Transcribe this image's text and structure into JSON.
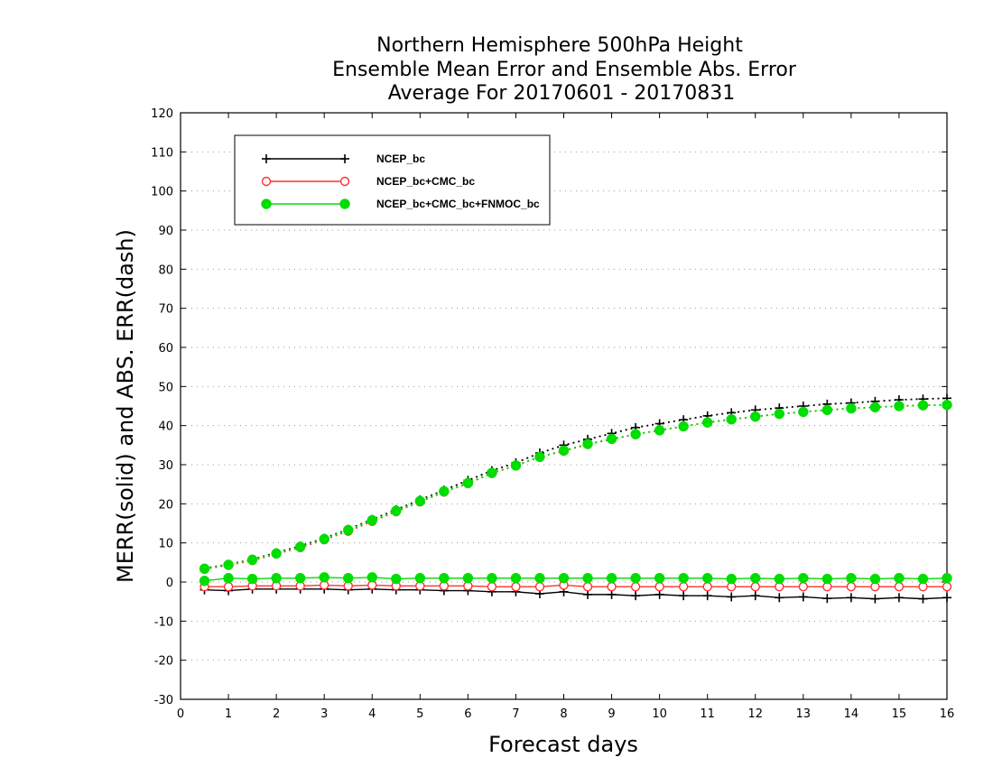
{
  "chart_data": {
    "type": "line",
    "title": [
      "Northern Hemisphere 500hPa Height",
      "Ensemble Mean Error and Ensemble Abs. Error",
      "Average For 20170601 - 20170831"
    ],
    "xlabel": "Forecast days",
    "ylabel": "MERR(solid) and ABS. ERR(dash)",
    "xlim": [
      0,
      16
    ],
    "ylim": [
      -30,
      120
    ],
    "xticks": [
      "0",
      "1",
      "2",
      "3",
      "4",
      "5",
      "6",
      "7",
      "8",
      "9",
      "10",
      "11",
      "12",
      "13",
      "14",
      "15",
      "16"
    ],
    "yticks": [
      "-30",
      "-20",
      "-10",
      "0",
      "10",
      "20",
      "30",
      "40",
      "50",
      "60",
      "70",
      "80",
      "90",
      "100",
      "110",
      "120"
    ],
    "grid": "horizontal dotted",
    "legend_position": "top-left",
    "x": [
      0.5,
      1,
      1.5,
      2,
      2.5,
      3,
      3.5,
      4,
      4.5,
      5,
      5.5,
      6,
      6.5,
      7,
      7.5,
      8,
      8.5,
      9,
      9.5,
      10,
      10.5,
      11,
      11.5,
      12,
      12.5,
      13,
      13.5,
      14,
      14.5,
      15,
      15.5,
      16
    ],
    "series": [
      {
        "name": "NCEP_bc",
        "color": "#000000",
        "marker": "plus",
        "merr": [
          -2,
          -2.2,
          -1.8,
          -1.8,
          -1.8,
          -1.8,
          -2,
          -1.8,
          -2,
          -2,
          -2.2,
          -2.2,
          -2.5,
          -2.5,
          -3,
          -2.5,
          -3.2,
          -3.2,
          -3.5,
          -3.2,
          -3.5,
          -3.5,
          -3.8,
          -3.5,
          -4,
          -3.8,
          -4.2,
          -4,
          -4.3,
          -4,
          -4.3,
          -4
        ],
        "abserr": [
          3.5,
          4.5,
          5.8,
          7.5,
          9.2,
          11.2,
          13.5,
          16,
          18.5,
          21,
          23.5,
          26,
          28.5,
          30.5,
          33,
          35,
          36.5,
          38,
          39.5,
          40.5,
          41.5,
          42.5,
          43.3,
          44,
          44.5,
          45,
          45.5,
          45.8,
          46.2,
          46.6,
          46.8,
          47
        ]
      },
      {
        "name": "NCEP_bc+CMC_bc",
        "color": "#ff3030",
        "marker": "open-circle",
        "merr": [
          -1.2,
          -1.2,
          -1,
          -1,
          -1,
          -0.8,
          -1,
          -0.8,
          -1,
          -1,
          -1,
          -1,
          -1.2,
          -1.2,
          -1.2,
          -0.8,
          -1.2,
          -1.2,
          -1.2,
          -1.2,
          -1.2,
          -1.2,
          -1.2,
          -1.2,
          -1.2,
          -1.2,
          -1.2,
          -1.2,
          -1.2,
          -1.2,
          -1.2,
          -1.2
        ],
        "abserr": [
          3.3,
          4.3,
          5.5,
          7.2,
          8.8,
          10.8,
          13,
          15.5,
          18,
          20.5,
          23,
          25.2,
          27.8,
          29.8,
          32,
          33.5,
          35.2,
          36.5,
          37.8,
          38.8,
          39.8,
          40.8,
          41.6,
          42.3,
          43,
          43.5,
          44,
          44.4,
          44.7,
          45,
          45.2,
          45.3
        ]
      },
      {
        "name": "NCEP_bc+CMC_bc+FNMOC_bc",
        "color": "#00dd00",
        "marker": "filled-circle",
        "merr": [
          0.3,
          1,
          0.8,
          1,
          1,
          1.2,
          1,
          1.2,
          0.8,
          1,
          1,
          1,
          1,
          1,
          1,
          1,
          1,
          1,
          1,
          1,
          1,
          1,
          0.8,
          1,
          0.8,
          1,
          0.8,
          1,
          0.8,
          1,
          0.8,
          1
        ],
        "abserr": [
          3.4,
          4.4,
          5.7,
          7.3,
          9,
          11,
          13.3,
          15.8,
          18.2,
          20.7,
          23.2,
          25.3,
          27.9,
          29.8,
          32,
          33.6,
          35.3,
          36.6,
          37.8,
          38.8,
          39.8,
          40.8,
          41.6,
          42.3,
          43,
          43.5,
          44,
          44.4,
          44.7,
          45,
          45.2,
          45.3
        ]
      }
    ]
  }
}
